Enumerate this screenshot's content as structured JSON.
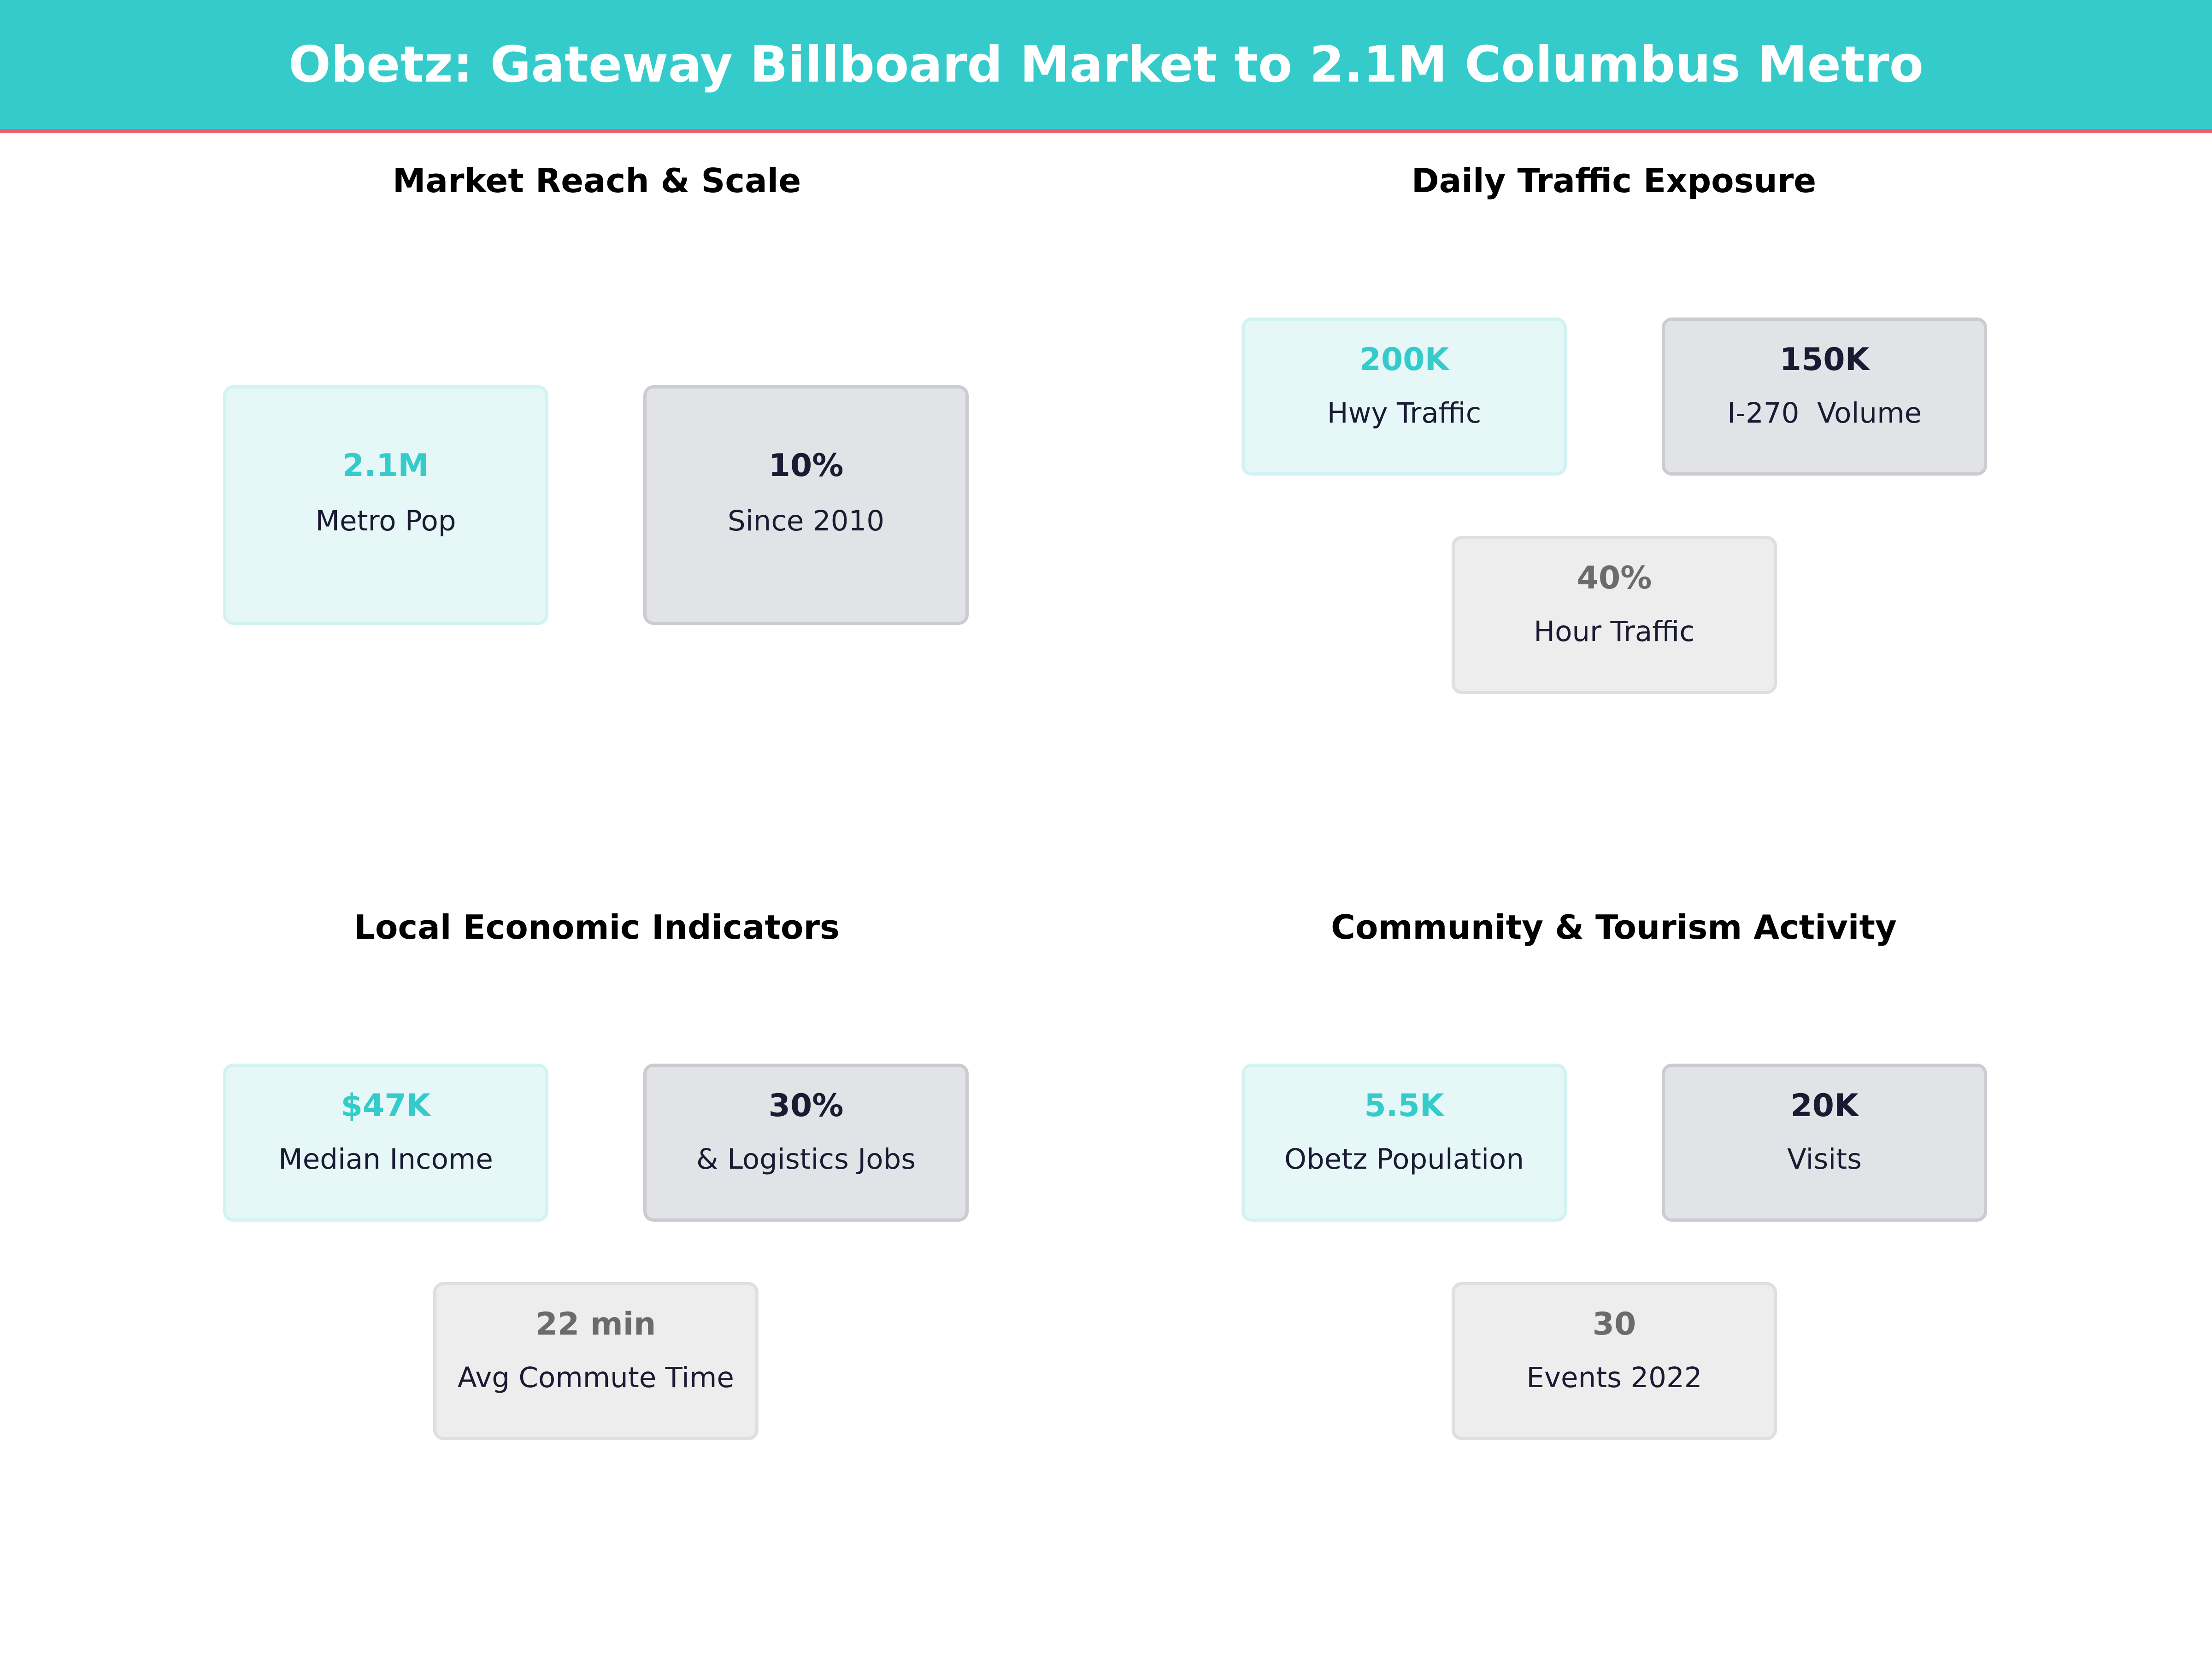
{
  "title": "Obetz: Gateway Billboard Market to 2.1M Columbus Metro",
  "colors": {
    "header": "#36CBCB",
    "header_rule": "#EE5D70",
    "accent": "#36CBCB",
    "dark": "#1A1A33",
    "muted": "#6B6B6B"
  },
  "sections": [
    {
      "title": "Market Reach & Scale",
      "cards": [
        {
          "value": "2.1M",
          "label": "Metro Pop"
        },
        {
          "value": "10%",
          "label": "Since 2010"
        }
      ]
    },
    {
      "title": "Daily Traffic Exposure",
      "cards": [
        {
          "value": "200K",
          "label": "Hwy Traffic"
        },
        {
          "value": "150K",
          "label": "I-270  Volume"
        },
        {
          "value": "40%",
          "label": "Hour Traffic"
        }
      ]
    },
    {
      "title": "Local Economic Indicators",
      "cards": [
        {
          "value": "$47K",
          "label": "Median Income"
        },
        {
          "value": "30%",
          "label": "& Logistics Jobs"
        },
        {
          "value": "22 min",
          "label": "Avg Commute Time"
        }
      ]
    },
    {
      "title": "Community & Tourism Activity",
      "cards": [
        {
          "value": "5.5K",
          "label": "Obetz Population"
        },
        {
          "value": "20K",
          "label": "Visits"
        },
        {
          "value": "30",
          "label": "Events 2022"
        }
      ]
    }
  ]
}
